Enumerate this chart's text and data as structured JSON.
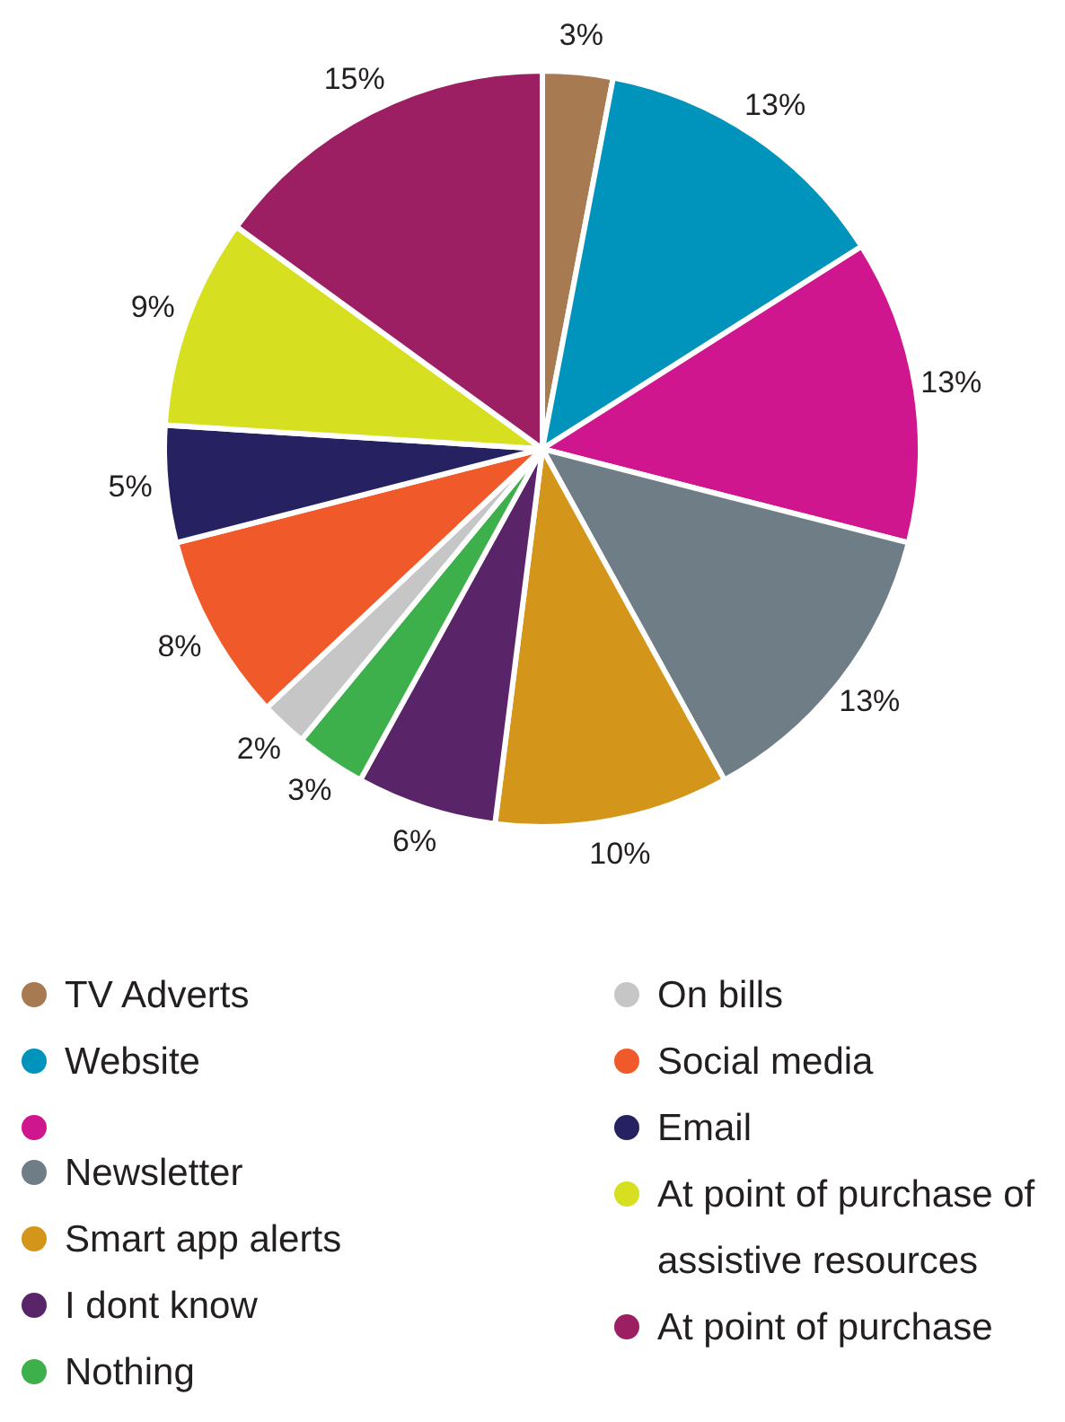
{
  "chart_data": {
    "type": "pie",
    "categories": [
      "TV Adverts",
      "Website",
      null,
      "Newsletter",
      "Smart app alerts",
      "I dont know",
      "Nothing",
      "On bills",
      "Social media",
      "Email",
      "At point of purchase of assistive resources",
      "At point of purchase"
    ],
    "values": [
      3,
      13,
      13,
      13,
      10,
      6,
      3,
      2,
      8,
      5,
      9,
      15
    ],
    "value_labels": [
      "3%",
      "13%",
      "13%",
      "13%",
      "10%",
      "6%",
      "3%",
      "2%",
      "8%",
      "5%",
      "9%",
      "15%"
    ],
    "colors": [
      "#a87a52",
      "#0093bb",
      "#d0168f",
      "#6f7e86",
      "#d3961a",
      "#5a2468",
      "#3db04b",
      "#c6c6c6",
      "#f05a2a",
      "#262262",
      "#d6e021",
      "#9c1f63"
    ],
    "legend": "bottom"
  }
}
